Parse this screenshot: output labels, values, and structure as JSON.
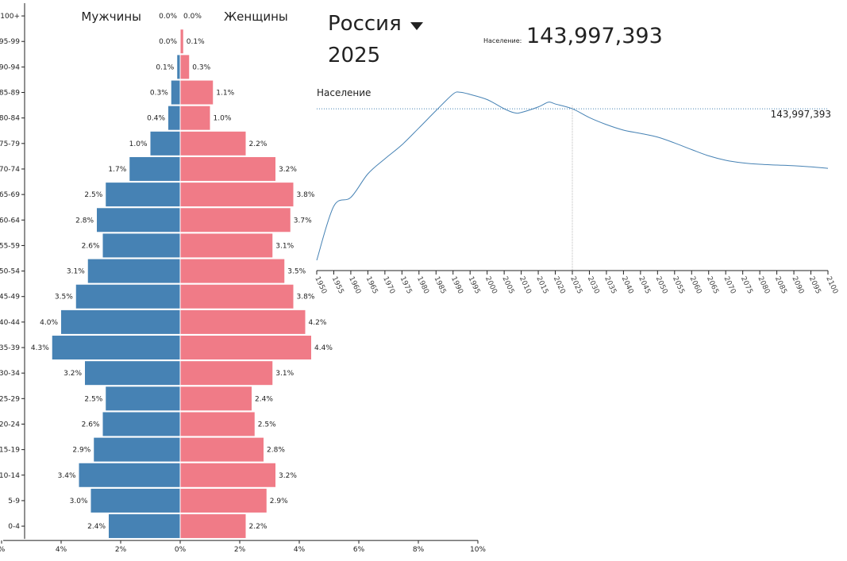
{
  "header": {
    "country": "Россия",
    "year": "2025",
    "population_label": "Население:",
    "population_value": "143,997,393"
  },
  "chart_data": [
    {
      "type": "bar",
      "title": "",
      "orientation": "horizontal-pyramid",
      "male_label": "Мужчины",
      "female_label": "Женщины",
      "categories": [
        "100+",
        "95-99",
        "90-94",
        "85-89",
        "80-84",
        "75-79",
        "70-74",
        "65-69",
        "60-64",
        "55-59",
        "50-54",
        "45-49",
        "40-44",
        "35-39",
        "30-34",
        "25-29",
        "20-24",
        "15-19",
        "10-14",
        "5-9",
        "0-4"
      ],
      "series": [
        {
          "name": "Мужчины",
          "color": "#4682b4",
          "values": [
            0.0,
            0.0,
            0.1,
            0.3,
            0.4,
            1.0,
            1.7,
            2.5,
            2.8,
            2.6,
            3.1,
            3.5,
            4.0,
            4.3,
            3.2,
            2.5,
            2.6,
            2.9,
            3.4,
            3.0,
            2.4
          ],
          "labels": [
            "0.0%",
            "0.0%",
            "0.1%",
            "0.3%",
            "0.4%",
            "1.0%",
            "1.7%",
            "2.5%",
            "2.8%",
            "2.6%",
            "3.1%",
            "3.5%",
            "4.0%",
            "4.3%",
            "3.2%",
            "2.5%",
            "2.6%",
            "2.9%",
            "3.4%",
            "3.0%",
            "2.4%"
          ]
        },
        {
          "name": "Женщины",
          "color": "#f07b87",
          "values": [
            0.0,
            0.1,
            0.3,
            1.1,
            1.0,
            2.2,
            3.2,
            3.8,
            3.7,
            3.1,
            3.5,
            3.8,
            4.2,
            4.4,
            3.1,
            2.4,
            2.5,
            2.8,
            3.2,
            2.9,
            2.2
          ],
          "labels": [
            "0.0%",
            "0.1%",
            "0.3%",
            "1.1%",
            "1.0%",
            "2.2%",
            "3.2%",
            "3.8%",
            "3.7%",
            "3.1%",
            "3.5%",
            "3.8%",
            "4.2%",
            "4.4%",
            "3.1%",
            "2.4%",
            "2.5%",
            "2.8%",
            "3.2%",
            "2.9%",
            "2.2%"
          ]
        }
      ],
      "x_ticks": [
        "%",
        "4%",
        "2%",
        "0%",
        "2%",
        "4%",
        "6%",
        "8%",
        "10%"
      ],
      "x_tick_values": [
        -6,
        -4,
        -2,
        0,
        2,
        4,
        6,
        8,
        10
      ],
      "xlim": [
        -6,
        10
      ]
    },
    {
      "type": "line",
      "title": "Население",
      "x_ticks": [
        "1950",
        "1955",
        "1960",
        "1965",
        "1970",
        "1975",
        "1980",
        "1985",
        "1990",
        "1995",
        "2000",
        "2005",
        "2010",
        "2015",
        "2020",
        "2025",
        "2030",
        "2035",
        "2040",
        "2045",
        "2050",
        "2055",
        "2060",
        "2065",
        "2070",
        "2075",
        "2080",
        "2085",
        "2090",
        "2095",
        "2100"
      ],
      "xlim": [
        1950,
        2100
      ],
      "ylim": [
        100000000,
        152000000
      ],
      "marker_year": 2025,
      "marker_value_label": "143,997,393",
      "marker_value": 143997393,
      "x": [
        1950,
        1955,
        1960,
        1965,
        1970,
        1975,
        1980,
        1985,
        1990,
        1992,
        1995,
        2000,
        2005,
        2008,
        2010,
        2015,
        2018,
        2020,
        2025,
        2030,
        2035,
        2040,
        2045,
        2050,
        2055,
        2060,
        2065,
        2070,
        2075,
        2080,
        2085,
        2090,
        2095,
        2100
      ],
      "values": [
        102800000,
        117500000,
        119900000,
        126300000,
        130400000,
        134200000,
        138800000,
        143500000,
        148000000,
        148500000,
        147900000,
        146500000,
        144000000,
        142900000,
        143000000,
        144500000,
        145800000,
        145300000,
        143997393,
        141600000,
        139700000,
        138200000,
        137300000,
        136300000,
        134700000,
        132900000,
        131200000,
        130000000,
        129300000,
        128900000,
        128700000,
        128500000,
        128200000,
        127800000
      ]
    }
  ]
}
